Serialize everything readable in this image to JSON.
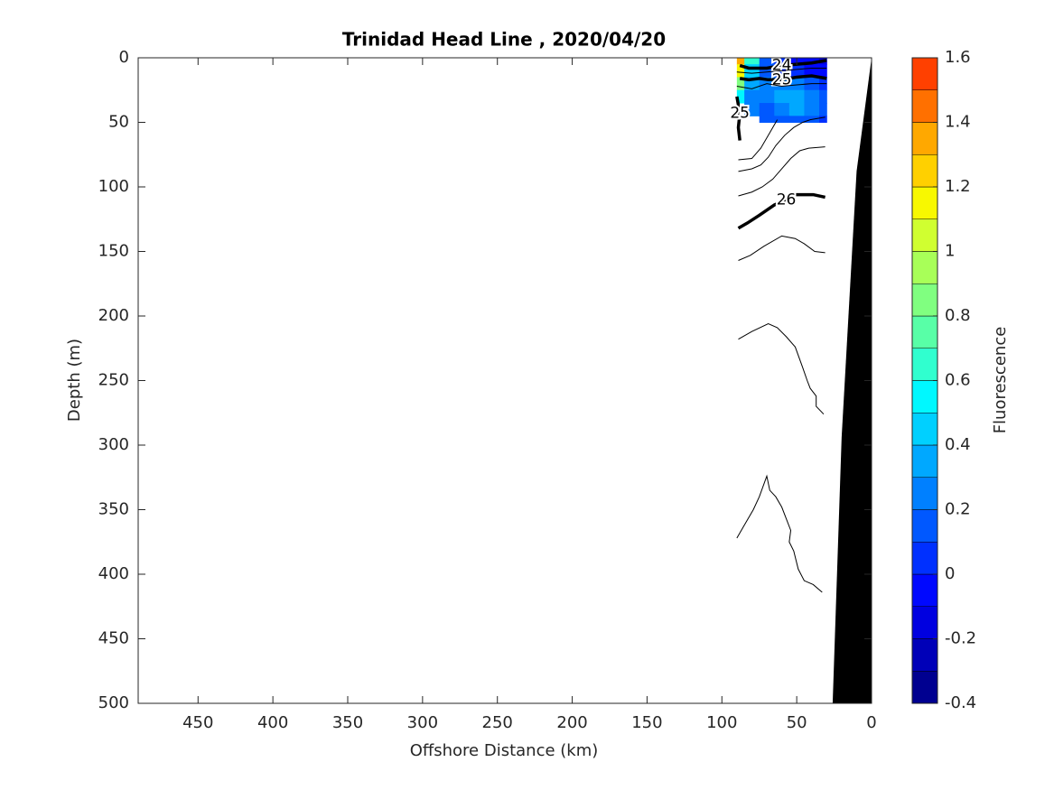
{
  "chart_data": {
    "type": "contour",
    "title": "Trinidad Head Line , 2020/04/20",
    "xlabel": "Offshore Distance (km)",
    "ylabel": "Depth (m)",
    "xlim": [
      490,
      0
    ],
    "ylim": [
      0,
      500
    ],
    "xticks": [
      450,
      400,
      350,
      300,
      250,
      200,
      150,
      100,
      50,
      0
    ],
    "yticks": [
      0,
      50,
      100,
      150,
      200,
      250,
      300,
      350,
      400,
      450,
      500
    ],
    "fluorescence": {
      "x": [
        90,
        80,
        70,
        60,
        50,
        40,
        30
      ],
      "depth": [
        0,
        10,
        20,
        30,
        40,
        50
      ],
      "values": [
        [
          1.3,
          0.6,
          0.1,
          0.0,
          -0.1,
          -0.1,
          -0.2
        ],
        [
          1.1,
          0.4,
          0.1,
          0.0,
          0.0,
          -0.1,
          -0.1
        ],
        [
          0.8,
          0.3,
          0.2,
          0.2,
          0.2,
          0.1,
          0.0
        ],
        [
          0.5,
          0.2,
          0.2,
          0.3,
          0.3,
          0.2,
          0.1
        ],
        [
          null,
          0.2,
          0.1,
          0.2,
          0.3,
          0.2,
          0.1
        ],
        [
          null,
          null,
          0.1,
          0.1,
          0.1,
          0.1,
          0.0
        ]
      ]
    },
    "contours": [
      {
        "level": 24,
        "bold": true,
        "x": [
          88,
          82,
          70,
          60,
          50,
          40,
          30
        ],
        "depth": [
          6,
          8,
          8,
          6,
          5,
          4,
          2
        ]
      },
      {
        "level": 24.5,
        "bold": false,
        "x": [
          90,
          80,
          70,
          60,
          50,
          40,
          30
        ],
        "depth": [
          11,
          12,
          11,
          10,
          9,
          8,
          8
        ]
      },
      {
        "level": 25,
        "bold": true,
        "x": [
          88,
          82,
          75,
          69,
          60,
          50,
          40,
          30
        ],
        "depth": [
          16,
          17,
          16,
          17,
          17,
          15,
          14,
          16
        ]
      },
      {
        "level": 25.2,
        "bold": false,
        "x": [
          90,
          80,
          70,
          60,
          50,
          40,
          30
        ],
        "depth": [
          22,
          24,
          20,
          22,
          21,
          20,
          20
        ]
      },
      {
        "level": 25,
        "bold": true,
        "x": [
          88,
          89,
          88,
          90
        ],
        "depth": [
          64,
          54,
          43,
          30
        ]
      },
      {
        "level": 25.4,
        "bold": false,
        "x": [
          89,
          80,
          74,
          68,
          63
        ],
        "depth": [
          79,
          78,
          70,
          58,
          48
        ]
      },
      {
        "level": 25.6,
        "bold": false,
        "x": [
          89,
          80,
          74,
          69,
          64,
          58,
          52,
          46,
          41,
          31
        ],
        "depth": [
          88,
          86,
          83,
          77,
          68,
          60,
          54,
          50,
          48,
          46
        ]
      },
      {
        "level": 25.8,
        "bold": false,
        "x": [
          89,
          80,
          73,
          66,
          60,
          54,
          48,
          42,
          31
        ],
        "depth": [
          107,
          104,
          100,
          94,
          86,
          78,
          72,
          70,
          69
        ]
      },
      {
        "level": 26,
        "bold": true,
        "x": [
          89,
          83,
          75,
          65,
          57,
          51,
          45,
          39,
          31
        ],
        "depth": [
          132,
          128,
          122,
          114,
          110,
          106,
          106,
          106,
          108
        ]
      },
      {
        "level": 26.2,
        "bold": false,
        "x": [
          89,
          81,
          72,
          60,
          51,
          45,
          38,
          31
        ],
        "depth": [
          157,
          153,
          146,
          138,
          140,
          144,
          150,
          151
        ]
      },
      {
        "level": 26.4,
        "bold": false,
        "x": [
          89,
          80,
          69,
          63,
          57,
          51,
          46,
          43,
          41,
          37,
          37,
          32
        ],
        "depth": [
          218,
          212,
          206,
          209,
          216,
          224,
          240,
          250,
          256,
          262,
          270,
          276
        ]
      },
      {
        "level": 26.6,
        "bold": false,
        "x": [
          90,
          85,
          79,
          75,
          70,
          68,
          64,
          60,
          54,
          55,
          52,
          49,
          45,
          39,
          33
        ],
        "depth": [
          372,
          362,
          350,
          340,
          324,
          335,
          340,
          348,
          366,
          375,
          382,
          396,
          405,
          408,
          414
        ]
      }
    ],
    "bathymetry": {
      "x": [
        0,
        10,
        20,
        26
      ],
      "depth": [
        0,
        88,
        294,
        500
      ],
      "color": "#000000"
    },
    "colorbar": {
      "label": "Fluorescence",
      "lim": [
        -0.4,
        1.6
      ],
      "ticks": [
        -0.4,
        -0.2,
        0,
        0.2,
        0.4,
        0.6,
        0.8,
        1,
        1.2,
        1.4,
        1.6
      ],
      "colors": [
        "#000090",
        "#0000b8",
        "#0000e0",
        "#0008ff",
        "#0030ff",
        "#0058ff",
        "#0080ff",
        "#00a8ff",
        "#00d0ff",
        "#00f8ff",
        "#30ffcf",
        "#58ffa7",
        "#80ff80",
        "#a8ff58",
        "#d0ff30",
        "#f8f800",
        "#ffd000",
        "#ffa800",
        "#ff7000",
        "#ff4000"
      ]
    }
  }
}
